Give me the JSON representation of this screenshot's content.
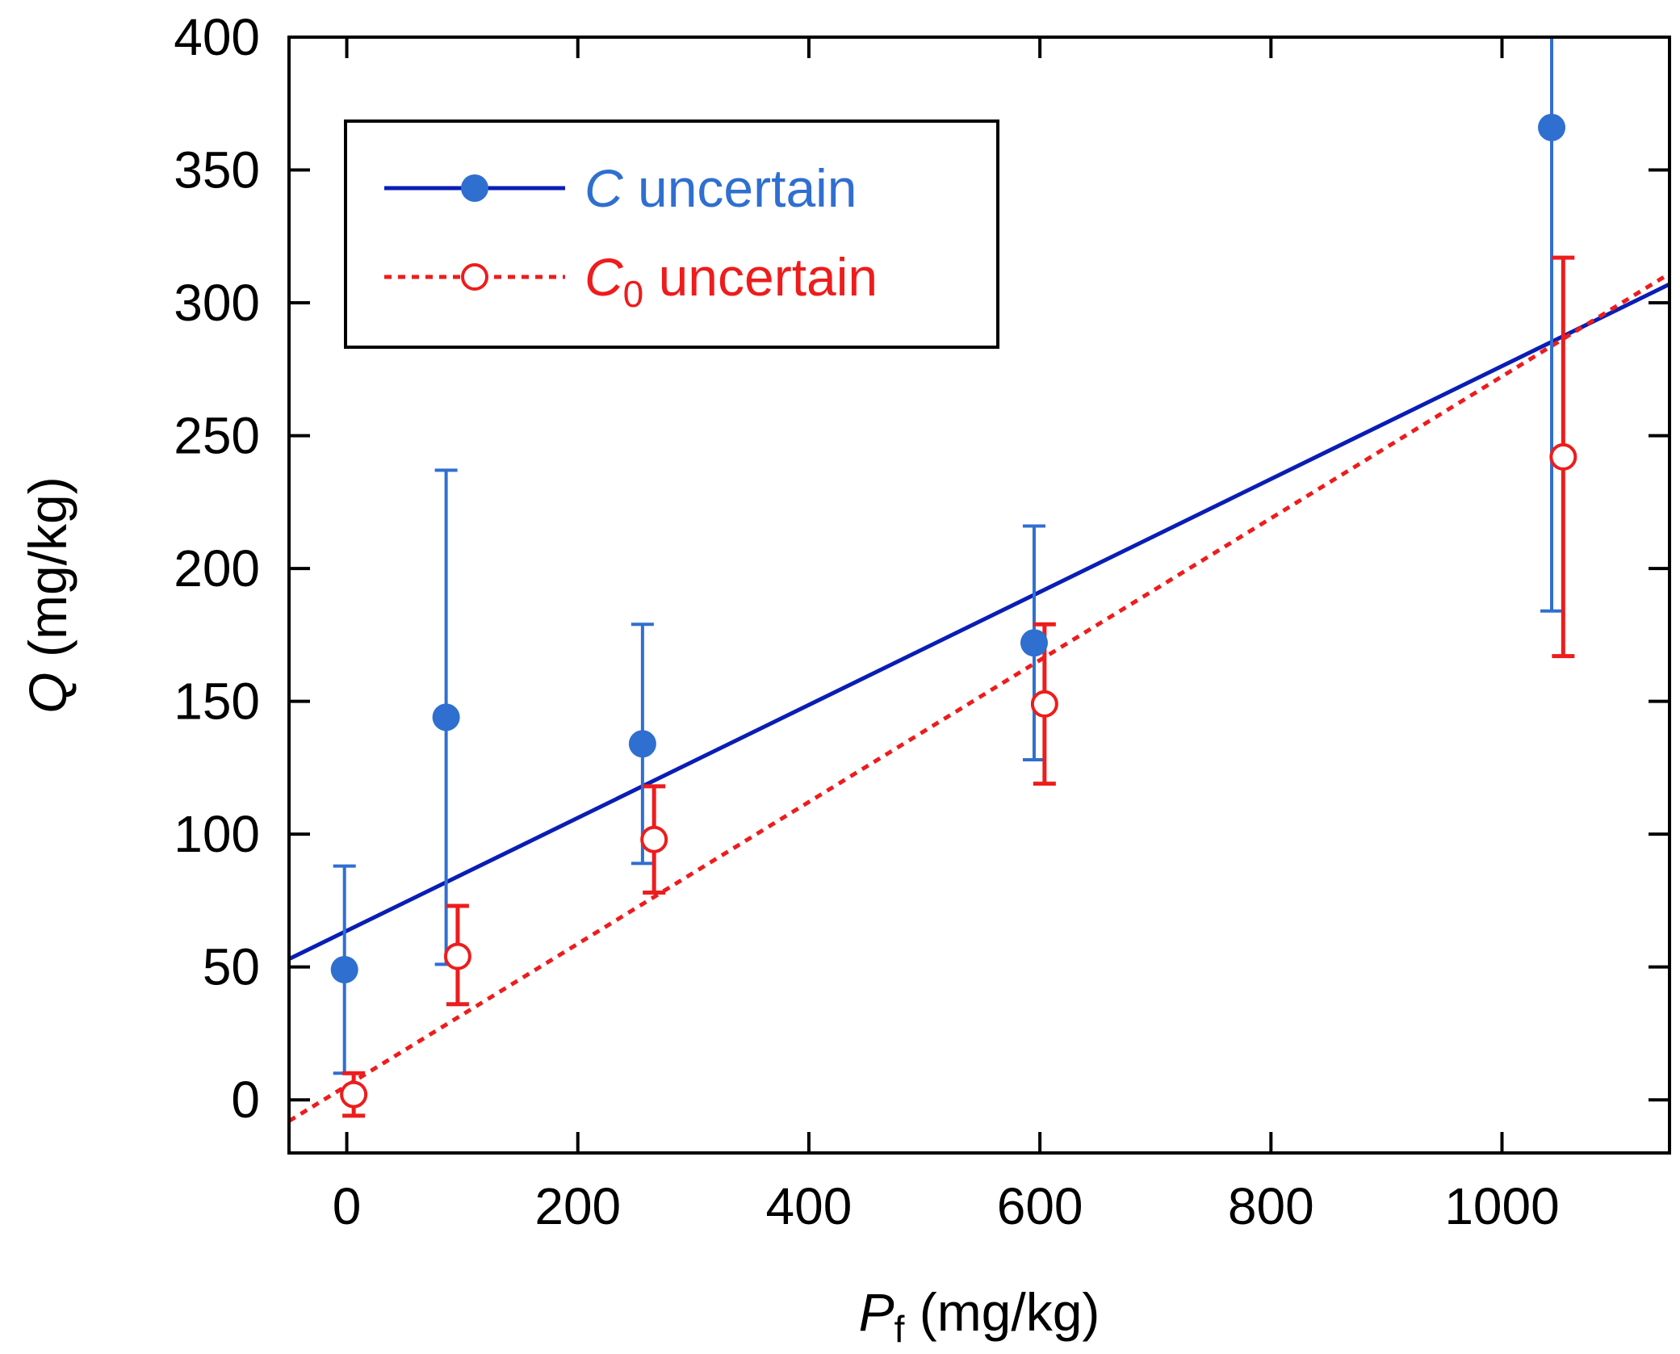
{
  "chart_data": {
    "type": "scatter",
    "xlim": [
      -50,
      1145
    ],
    "ylim": [
      -20,
      400
    ],
    "x_ticks": [
      0,
      200,
      400,
      600,
      800,
      1000
    ],
    "x_tick_labels": [
      "0",
      "200",
      "400",
      "600",
      "800",
      "1000"
    ],
    "y_ticks": [
      0,
      50,
      100,
      150,
      200,
      250,
      300,
      350,
      400
    ],
    "y_tick_labels": [
      "0",
      "50",
      "100",
      "150",
      "200",
      "250",
      "300",
      "350",
      "400"
    ],
    "xlabel": {
      "var": "P",
      "sub": "f",
      "unit": " (mg/kg)"
    },
    "ylabel": {
      "var": "Q",
      "unit": " (mg/kg)"
    },
    "grid": false,
    "legend_position": "top-left",
    "series": [
      {
        "name": "C uncertain",
        "name_parts": {
          "var": "C",
          "sub": "",
          "rest": " uncertain"
        },
        "color": "#2f6fd0",
        "line_color": "#0a1eb4",
        "line_style": "solid",
        "marker": "filled-circle",
        "points": [
          {
            "x": -2,
            "y": 49,
            "err_low": 10,
            "err_high": 88
          },
          {
            "x": 86,
            "y": 144,
            "err_low": 51,
            "err_high": 237
          },
          {
            "x": 256,
            "y": 134,
            "err_low": 89,
            "err_high": 179
          },
          {
            "x": 595,
            "y": 172,
            "err_low": 128,
            "err_high": 216
          },
          {
            "x": 1043,
            "y": 366,
            "err_low": 184,
            "err_high": 400
          }
        ],
        "fit_line": {
          "x": [
            -50,
            1145
          ],
          "y": [
            53,
            307
          ]
        }
      },
      {
        "name": "C0 uncertain",
        "name_parts": {
          "var": "C",
          "sub": "0",
          "rest": " uncertain"
        },
        "color": "#ee1c1c",
        "line_color": "#ee1c1c",
        "line_style": "dotted",
        "marker": "open-circle",
        "points": [
          {
            "x": 6,
            "y": 2,
            "err_low": -6,
            "err_high": 10
          },
          {
            "x": 96,
            "y": 54,
            "err_low": 36,
            "err_high": 73
          },
          {
            "x": 266,
            "y": 98,
            "err_low": 78,
            "err_high": 118
          },
          {
            "x": 604,
            "y": 149,
            "err_low": 119,
            "err_high": 179
          },
          {
            "x": 1053,
            "y": 242,
            "err_low": 167,
            "err_high": 317
          }
        ],
        "fit_line": {
          "x": [
            -50,
            1145
          ],
          "y": [
            -8,
            311
          ]
        }
      }
    ]
  }
}
